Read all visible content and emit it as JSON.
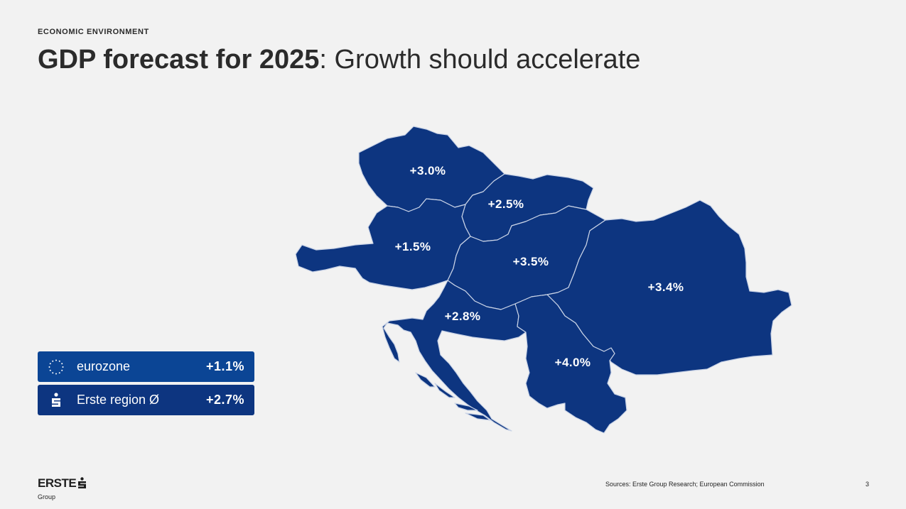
{
  "header": {
    "eyebrow": "ECONOMIC ENVIRONMENT",
    "title_bold": "GDP forecast for 2025",
    "title_rest": ": Growth should accelerate"
  },
  "map": {
    "fill_color": "#0d3580",
    "border_color": "#c9d3e6",
    "regions": [
      {
        "id": "cz",
        "label": "+3.0%"
      },
      {
        "id": "sk",
        "label": "+2.5%"
      },
      {
        "id": "at",
        "label": "+1.5%"
      },
      {
        "id": "hu",
        "label": "+3.5%"
      },
      {
        "id": "ro",
        "label": "+3.4%"
      },
      {
        "id": "hr",
        "label": "+2.8%"
      },
      {
        "id": "rs",
        "label": "+4.0%"
      }
    ]
  },
  "legend": {
    "eurozone": {
      "label": "eurozone",
      "value": "+1.1%",
      "icon": "eu-stars-icon",
      "color": "#0b4595"
    },
    "erste": {
      "label": "Erste region Ø",
      "value": "+2.7%",
      "icon": "erste-s-icon",
      "color": "#0d3580"
    }
  },
  "footer": {
    "logo_word": "ERSTE",
    "logo_sub": "Group",
    "source": "Sources: Erste Group Research; European Commission",
    "page_number": "3"
  }
}
